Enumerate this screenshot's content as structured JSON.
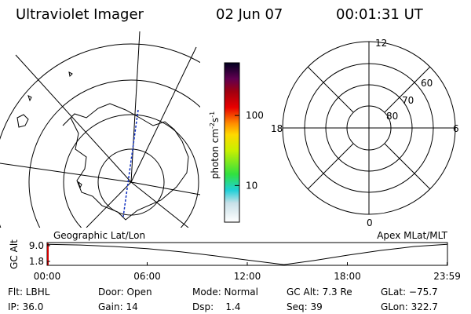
{
  "header": {
    "title": "Ultraviolet Imager",
    "date": "02 Jun 07",
    "time": "00:01:31 UT"
  },
  "colorbar": {
    "label": "photon cm",
    "label_exp1": "-2",
    "label_unit2": "s",
    "label_exp2": "-1",
    "scale": "log",
    "lim": [
      3,
      565
    ],
    "ticks": [
      10,
      100
    ]
  },
  "maps": {
    "left_label": "Geographic Lat/Lon",
    "right_label": "Apex MLat/MLT",
    "mlt_labels": [
      "12",
      "6",
      "0",
      "18"
    ],
    "mlat_labels": [
      "60",
      "70",
      "80"
    ]
  },
  "altitude_plot": {
    "ylabel": "GC Alt",
    "ylim": [
      0,
      10.4
    ],
    "yticks": [
      {
        "value": 1.8,
        "label": "1.8"
      },
      {
        "value": 9.0,
        "label": "9.0"
      }
    ],
    "xlim": [
      0,
      24
    ],
    "xticks": [
      {
        "value": 0,
        "label": "00:00"
      },
      {
        "value": 6,
        "label": "06:00"
      },
      {
        "value": 12,
        "label": "12:00"
      },
      {
        "value": 18,
        "label": "18:00"
      },
      {
        "value": 23.98,
        "label": "23:59"
      }
    ],
    "x": [
      0,
      2,
      4,
      6,
      8,
      10,
      12,
      14.2,
      16,
      18,
      20,
      22,
      23.98
    ],
    "values": [
      9.6,
      9.3,
      8.6,
      7.6,
      6.2,
      4.4,
      2.4,
      0.3,
      2.2,
      4.6,
      6.8,
      8.6,
      9.6
    ]
  },
  "info": {
    "rows": [
      [
        "Flt: LBHL",
        "Door: Open",
        "Mode: Normal",
        "GC Alt: 7.3 Re",
        "GLat: −75.7"
      ],
      [
        "IP: 36.0",
        "Gain: 14",
        "Dsp:    1.4",
        "Seq: 39",
        "GLon: 322.7"
      ]
    ]
  }
}
